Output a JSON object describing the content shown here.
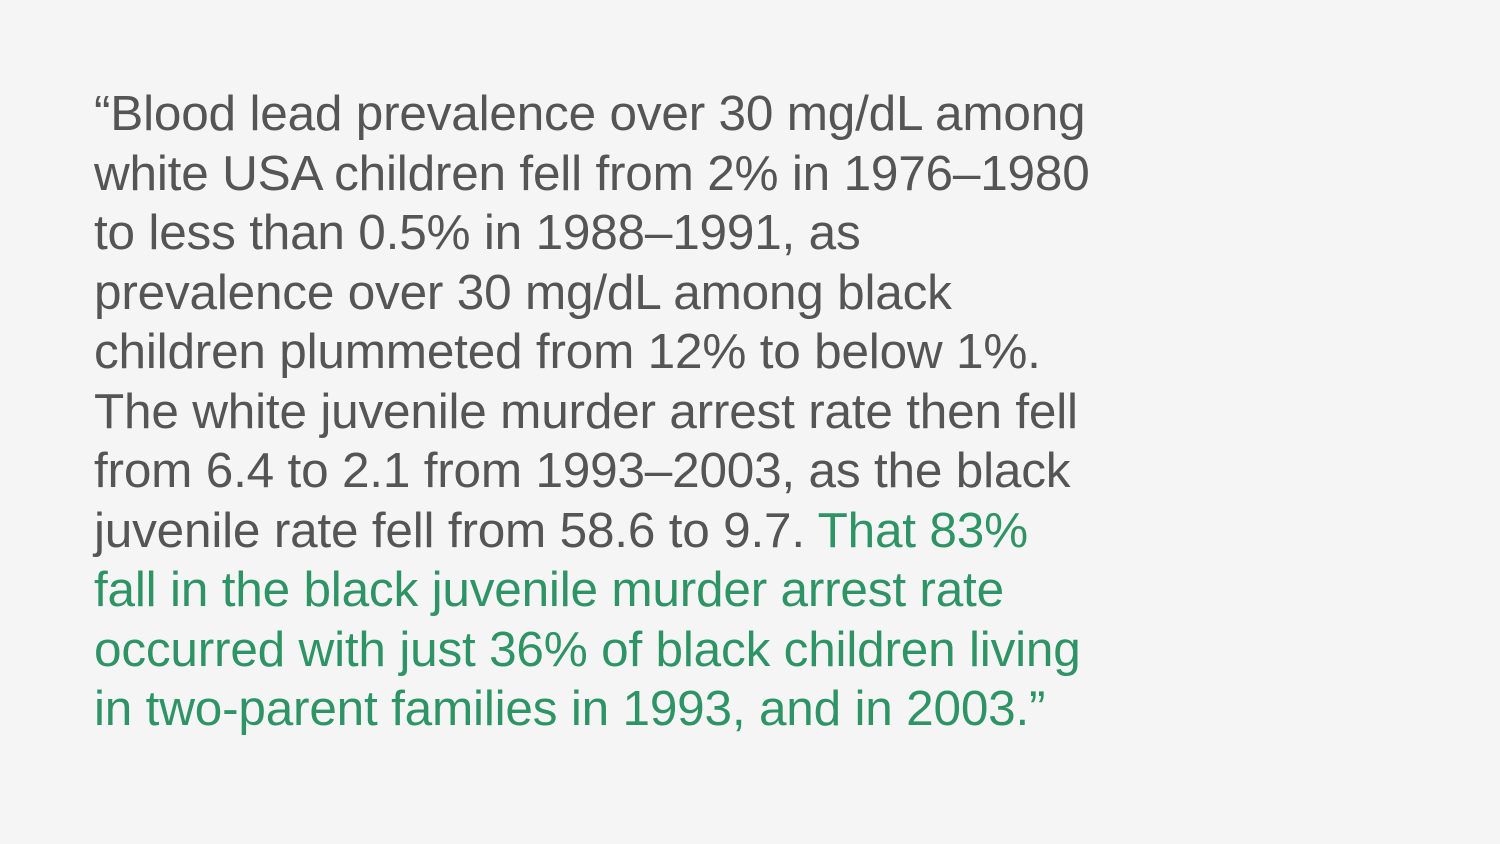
{
  "quote": {
    "lines": [
      {
        "plain": "“Blood lead prevalence over 30 mg/dL among",
        "highlight": ""
      },
      {
        "plain": "white USA children fell from 2% in 1976–1980",
        "highlight": ""
      },
      {
        "plain": "to less than 0.5% in 1988–1991, as",
        "highlight": ""
      },
      {
        "plain": "prevalence over 30 mg/dL among black",
        "highlight": ""
      },
      {
        "plain": "children plummeted from 12% to below 1%.",
        "highlight": ""
      },
      {
        "plain": "The white juvenile murder arrest rate then fell",
        "highlight": ""
      },
      {
        "plain": "from 6.4 to 2.1 from 1993–2003, as the black",
        "highlight": ""
      },
      {
        "plain": "juvenile rate fell from 58.6 to 9.7. ",
        "highlight": "That 83%"
      },
      {
        "plain": "",
        "highlight": "fall in the black juvenile murder arrest rate"
      },
      {
        "plain": "",
        "highlight": "occurred with just 36% of black children living"
      },
      {
        "plain": "",
        "highlight": "in two-parent families in 1993, and in 2003.”"
      }
    ]
  },
  "colors": {
    "background": "#f5f5f5",
    "text": "#555555",
    "highlight": "#2e9466"
  }
}
